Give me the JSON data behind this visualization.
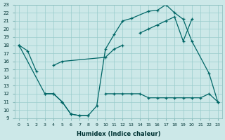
{
  "xlabel": "Humidex (Indice chaleur)",
  "ylabel": "",
  "xlim": [
    -0.5,
    23.5
  ],
  "ylim": [
    9,
    23
  ],
  "background_color": "#cce8e8",
  "grid_color": "#99cccc",
  "line_color": "#006666",
  "line1_segments": [
    {
      "x": [
        0,
        1,
        2
      ],
      "y": [
        18,
        17.3,
        14.8
      ]
    },
    {
      "x": [
        4,
        5,
        10,
        11,
        12
      ],
      "y": [
        15.5,
        16.0,
        16.5,
        17.5,
        18.0
      ]
    },
    {
      "x": [
        14,
        15,
        16,
        17,
        18,
        19,
        20
      ],
      "y": [
        19.5,
        20.0,
        20.5,
        21.0,
        21.5,
        18.5,
        21.2
      ]
    }
  ],
  "line2_segments": [
    {
      "x": [
        0,
        3,
        4,
        5,
        6,
        7,
        8,
        9,
        10,
        11,
        12,
        13,
        15,
        16,
        17,
        18,
        19,
        20,
        22,
        23
      ],
      "y": [
        18,
        12,
        12,
        11,
        9.5,
        9.3,
        9.3,
        10.5,
        17.5,
        19.3,
        21.0,
        21.3,
        22.2,
        22.3,
        23.0,
        22.0,
        21.2,
        18.5,
        14.5,
        11.0
      ]
    }
  ],
  "line3_segments": [
    {
      "x": [
        3,
        4,
        5,
        6,
        7,
        8
      ],
      "y": [
        12.0,
        12.0,
        11.0,
        9.5,
        9.3,
        9.3
      ]
    },
    {
      "x": [
        10,
        11,
        12,
        13,
        14,
        15,
        16,
        17,
        18,
        19,
        20,
        21,
        22,
        23
      ],
      "y": [
        12.0,
        12.0,
        12.0,
        12.0,
        12.0,
        11.5,
        11.5,
        11.5,
        11.5,
        11.5,
        11.5,
        11.5,
        12.0,
        11.0
      ]
    }
  ],
  "xticks": [
    0,
    1,
    2,
    3,
    4,
    5,
    6,
    7,
    8,
    9,
    10,
    11,
    12,
    13,
    14,
    15,
    16,
    17,
    18,
    19,
    20,
    21,
    22,
    23
  ],
  "yticks": [
    9,
    10,
    11,
    12,
    13,
    14,
    15,
    16,
    17,
    18,
    19,
    20,
    21,
    22,
    23
  ]
}
